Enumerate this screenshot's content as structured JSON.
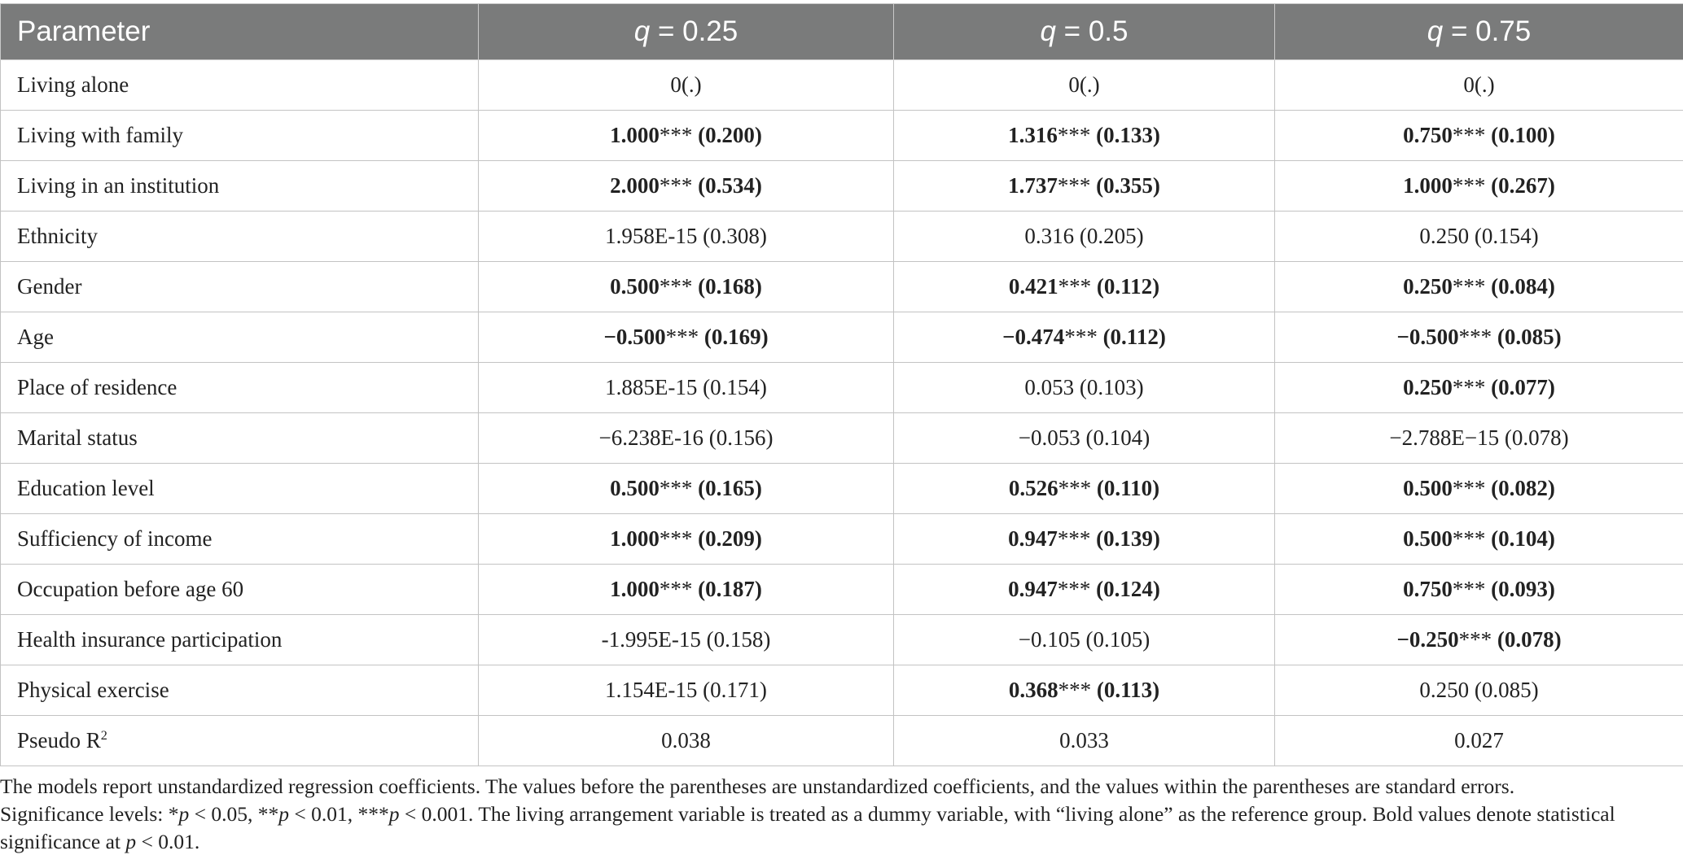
{
  "table": {
    "header": {
      "parameter": "Parameter",
      "q_symbol": "q",
      "q_values": [
        " = 0.25",
        " = 0.5",
        " = 0.75"
      ]
    },
    "rows": [
      {
        "label": "Living alone",
        "cells": [
          {
            "coef": "0(.)",
            "stars": "",
            "se": "",
            "bold": false
          },
          {
            "coef": "0(.)",
            "stars": "",
            "se": "",
            "bold": false
          },
          {
            "coef": "0(.)",
            "stars": "",
            "se": "",
            "bold": false
          }
        ]
      },
      {
        "label": "Living with family",
        "cells": [
          {
            "coef": "1.000",
            "stars": "***",
            "se": " (0.200)",
            "bold": true
          },
          {
            "coef": "1.316",
            "stars": "***",
            "se": " (0.133)",
            "bold": true
          },
          {
            "coef": "0.750",
            "stars": "***",
            "se": " (0.100)",
            "bold": true
          }
        ]
      },
      {
        "label": "Living in an institution",
        "cells": [
          {
            "coef": "2.000",
            "stars": "***",
            "se": " (0.534)",
            "bold": true
          },
          {
            "coef": "1.737",
            "stars": "***",
            "se": " (0.355)",
            "bold": true
          },
          {
            "coef": "1.000",
            "stars": "***",
            "se": " (0.267)",
            "bold": true
          }
        ]
      },
      {
        "label": "Ethnicity",
        "cells": [
          {
            "coef": "1.958E-15",
            "stars": "",
            "se": " (0.308)",
            "bold": false
          },
          {
            "coef": "0.316",
            "stars": "",
            "se": " (0.205)",
            "bold": false
          },
          {
            "coef": "0.250",
            "stars": "",
            "se": " (0.154)",
            "bold": false
          }
        ]
      },
      {
        "label": "Gender",
        "cells": [
          {
            "coef": "0.500",
            "stars": "***",
            "se": " (0.168)",
            "bold": true
          },
          {
            "coef": "0.421",
            "stars": "***",
            "se": " (0.112)",
            "bold": true
          },
          {
            "coef": "0.250",
            "stars": "***",
            "se": " (0.084)",
            "bold": true
          }
        ]
      },
      {
        "label": "Age",
        "cells": [
          {
            "coef": "−0.500",
            "stars": "***",
            "se": " (0.169)",
            "bold": true
          },
          {
            "coef": "−0.474",
            "stars": "***",
            "se": " (0.112)",
            "bold": true
          },
          {
            "coef": "−0.500",
            "stars": "***",
            "se": " (0.085)",
            "bold": true
          }
        ]
      },
      {
        "label": "Place of residence",
        "cells": [
          {
            "coef": "1.885E-15",
            "stars": "",
            "se": " (0.154)",
            "bold": false
          },
          {
            "coef": "0.053",
            "stars": "",
            "se": " (0.103)",
            "bold": false
          },
          {
            "coef": "0.250",
            "stars": "***",
            "se": " (0.077)",
            "bold": true
          }
        ]
      },
      {
        "label": "Marital status",
        "cells": [
          {
            "coef": "−6.238E-16",
            "stars": "",
            "se": " (0.156)",
            "bold": false
          },
          {
            "coef": "−0.053",
            "stars": "",
            "se": " (0.104)",
            "bold": false
          },
          {
            "coef": "−2.788E−15",
            "stars": "",
            "se": " (0.078)",
            "bold": false
          }
        ]
      },
      {
        "label": "Education level",
        "cells": [
          {
            "coef": "0.500",
            "stars": "***",
            "se": " (0.165)",
            "bold": true
          },
          {
            "coef": "0.526",
            "stars": "***",
            "se": " (0.110)",
            "bold": true
          },
          {
            "coef": "0.500",
            "stars": "***",
            "se": " (0.082)",
            "bold": true
          }
        ]
      },
      {
        "label": "Sufficiency of income",
        "cells": [
          {
            "coef": "1.000",
            "stars": "***",
            "se": " (0.209)",
            "bold": true
          },
          {
            "coef": "0.947",
            "stars": "***",
            "se": " (0.139)",
            "bold": true
          },
          {
            "coef": "0.500",
            "stars": "***",
            "se": " (0.104)",
            "bold": true
          }
        ]
      },
      {
        "label": "Occupation before age 60",
        "cells": [
          {
            "coef": "1.000",
            "stars": "***",
            "se": " (0.187)",
            "bold": true
          },
          {
            "coef": "0.947",
            "stars": "***",
            "se": " (0.124)",
            "bold": true
          },
          {
            "coef": "0.750",
            "stars": "***",
            "se": " (0.093)",
            "bold": true
          }
        ]
      },
      {
        "label": "Health insurance participation",
        "cells": [
          {
            "coef": "-1.995E-15",
            "stars": "",
            "se": " (0.158)",
            "bold": false
          },
          {
            "coef": "−0.105",
            "stars": "",
            "se": " (0.105)",
            "bold": false
          },
          {
            "coef": "−0.250",
            "stars": "***",
            "se": " (0.078)",
            "bold": true
          }
        ]
      },
      {
        "label": "Physical exercise",
        "cells": [
          {
            "coef": "1.154E-15",
            "stars": "",
            "se": " (0.171)",
            "bold": false
          },
          {
            "coef": "0.368",
            "stars": "***",
            "se": " (0.113)",
            "bold": true
          },
          {
            "coef": "0.250",
            "stars": "",
            "se": " (0.085)",
            "bold": false
          }
        ]
      }
    ],
    "pseudo_r2": {
      "label": "Pseudo R",
      "label_sup": "2",
      "values": [
        "0.038",
        "0.033",
        "0.027"
      ]
    }
  },
  "footnote": {
    "line1": "The models report unstandardized regression coefficients. The values before the parentheses are unstandardized coefficients, and the values within the parentheses are standard errors.",
    "sig_prefix": "Significance levels: *",
    "p": "p",
    "sig_1": " < 0.05, **",
    "sig_2": " < 0.01, ***",
    "sig_3": " < 0.001. The living arrangement variable is treated as a dummy variable, with “living alone” as the reference group. Bold values denote statistical significance at ",
    "sig_end": " < 0.01."
  },
  "colors": {
    "header_bg": "#7a7b7b",
    "header_text": "#ffffff",
    "body_text": "#222222",
    "border": "#c3c3c3"
  }
}
